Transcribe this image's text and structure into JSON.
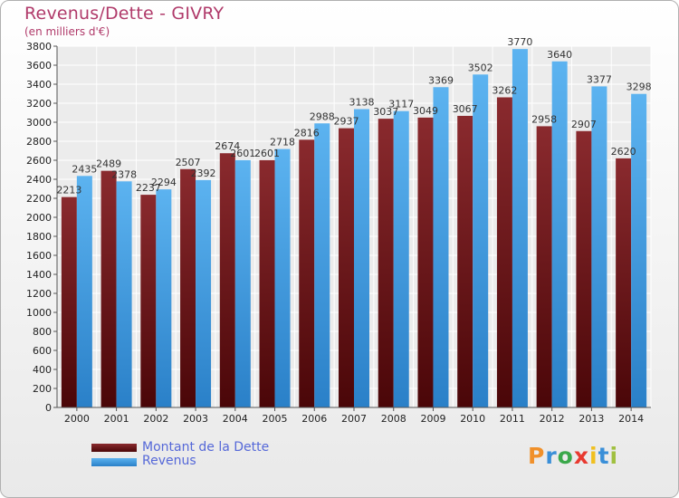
{
  "title": "Revenus/Dette - GIVRY",
  "subtitle": "(en milliers d'€)",
  "brand": {
    "letters": [
      "P",
      "r",
      "o",
      "x",
      "i",
      "t",
      "i"
    ],
    "colors": [
      "#f0902a",
      "#3a8fd8",
      "#3aa84a",
      "#e83a30",
      "#f0c020",
      "#3a8fd8",
      "#a0c040"
    ]
  },
  "chart_data": {
    "type": "bar",
    "categories": [
      "2000",
      "2001",
      "2002",
      "2003",
      "2004",
      "2005",
      "2006",
      "2007",
      "2008",
      "2009",
      "2010",
      "2011",
      "2012",
      "2013",
      "2014"
    ],
    "series": [
      {
        "name": "Montant de la Dette",
        "color": "#7a1e22",
        "values": [
          2213,
          2489,
          2237,
          2507,
          2674,
          2601,
          2816,
          2937,
          3037,
          3049,
          3067,
          3262,
          2958,
          2907,
          2620
        ],
        "labels": [
          "2213",
          "2489",
          "2237",
          "2507",
          "2674",
          "2601",
          "2816",
          "2937",
          "3037",
          "3049",
          "3067",
          "3262",
          "2958",
          "2907",
          "2620"
        ]
      },
      {
        "name": "Revenus",
        "color": "#4aa3e8",
        "values": [
          2435,
          2378,
          2294,
          2392,
          2601,
          2718,
          2988,
          3138,
          3117,
          3369,
          3502,
          3770,
          3640,
          3377,
          3298
        ],
        "labels": [
          "2435",
          "2378",
          "2294",
          "2392",
          "2601",
          "2718",
          "2988",
          "3138",
          "3117",
          "3369",
          "3502",
          "3770",
          "3640",
          "3377",
          "3298"
        ]
      }
    ],
    "yticks": [
      0,
      200,
      400,
      600,
      800,
      1000,
      1200,
      1400,
      1600,
      1800,
      2000,
      2200,
      2400,
      2600,
      2800,
      3000,
      3200,
      3400,
      3600,
      3800
    ],
    "ylim": [
      0,
      3800
    ],
    "grid": true,
    "legend": "bottom-left"
  }
}
